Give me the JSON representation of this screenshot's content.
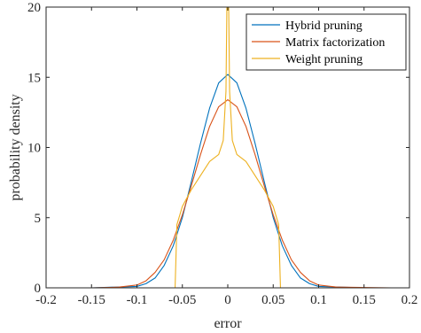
{
  "chart_data": {
    "type": "line",
    "xlabel": "error",
    "ylabel": "probability density",
    "xlim": [
      -0.2,
      0.2
    ],
    "ylim": [
      0,
      20
    ],
    "xticks": [
      "-0.2",
      "-0.15",
      "-0.1",
      "-0.05",
      "0",
      "0.05",
      "0.1",
      "0.15",
      "0.2"
    ],
    "yticks": [
      "0",
      "5",
      "10",
      "15",
      "20"
    ],
    "grid": false,
    "legend_position": "top-right",
    "series": [
      {
        "name": "Hybrid pruning",
        "color": "#0072bd",
        "x": [
          -0.15,
          -0.1,
          -0.09,
          -0.08,
          -0.07,
          -0.06,
          -0.05,
          -0.04,
          -0.03,
          -0.02,
          -0.01,
          0,
          0.01,
          0.02,
          0.03,
          0.04,
          0.05,
          0.06,
          0.07,
          0.08,
          0.09,
          0.1,
          0.15
        ],
        "y": [
          0,
          0.1,
          0.3,
          0.7,
          1.6,
          3.0,
          5.0,
          7.6,
          10.3,
          12.8,
          14.6,
          15.2,
          14.6,
          12.8,
          10.3,
          7.6,
          5.0,
          3.0,
          1.6,
          0.7,
          0.3,
          0.1,
          0
        ]
      },
      {
        "name": "Matrix factorization",
        "color": "#d95319",
        "x": [
          -0.15,
          -0.12,
          -0.1,
          -0.09,
          -0.08,
          -0.07,
          -0.06,
          -0.05,
          -0.04,
          -0.03,
          -0.02,
          -0.01,
          0,
          0.01,
          0.02,
          0.03,
          0.04,
          0.05,
          0.06,
          0.07,
          0.08,
          0.09,
          0.1,
          0.12,
          0.18
        ],
        "y": [
          0,
          0.05,
          0.2,
          0.5,
          1.1,
          2.0,
          3.4,
          5.2,
          7.3,
          9.5,
          11.5,
          12.9,
          13.4,
          12.9,
          11.5,
          9.5,
          7.3,
          5.2,
          3.4,
          2.0,
          1.1,
          0.5,
          0.2,
          0.05,
          0
        ]
      },
      {
        "name": "Weight pruning",
        "color": "#edb120",
        "x": [
          -0.058,
          -0.056,
          -0.05,
          -0.04,
          -0.03,
          -0.02,
          -0.01,
          -0.005,
          -0.002,
          -0.001,
          0,
          0.001,
          0.002,
          0.005,
          0.01,
          0.02,
          0.03,
          0.04,
          0.05,
          0.056,
          0.058
        ],
        "y": [
          0,
          4.5,
          5.8,
          7.0,
          8.0,
          9.0,
          9.5,
          10.5,
          14.0,
          20.0,
          20.0,
          20.0,
          14.0,
          10.5,
          9.5,
          9.0,
          8.0,
          7.0,
          5.8,
          4.5,
          0
        ]
      }
    ]
  }
}
